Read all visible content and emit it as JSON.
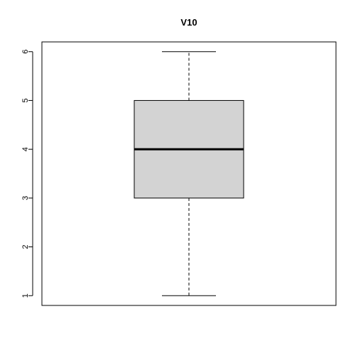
{
  "chart_data": {
    "type": "boxplot",
    "title": "V10",
    "xlabel": "",
    "ylabel": "",
    "ylim": [
      0.8,
      6.2
    ],
    "yticks": [
      1,
      2,
      3,
      4,
      5,
      6
    ],
    "grid": false,
    "box": {
      "min": 1,
      "q1": 3,
      "median": 4,
      "q3": 5,
      "max": 6
    },
    "colors": {
      "box_fill": "#d3d3d3",
      "stroke": "#000000",
      "background": "#ffffff"
    }
  }
}
